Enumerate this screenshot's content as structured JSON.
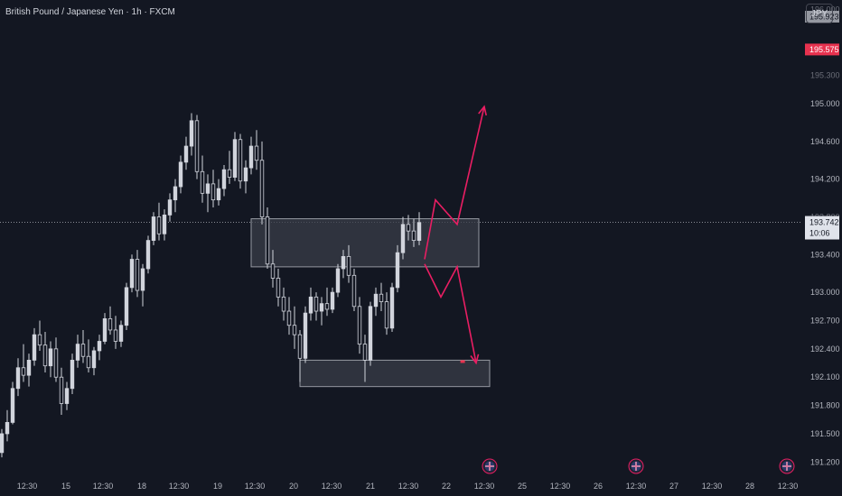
{
  "header": {
    "title": "British Pound / Japanese Yen · 1h · FXCM",
    "currency": "JPY"
  },
  "colors": {
    "background": "#131722",
    "candle": "#d1d4dc",
    "zone_fill": "#3a3d48",
    "zone_border": "#9598a1",
    "projection": "#e91e63",
    "last_price_bg": "#e0e3eb",
    "red_marker_bg": "#e8324f",
    "grey_marker_bg": "#9598a1"
  },
  "y_axis": {
    "ticks": [
      "195.000",
      "194.600",
      "194.200",
      "193.400",
      "193.000",
      "192.700",
      "192.400",
      "192.100",
      "191.800",
      "191.500",
      "191.200"
    ],
    "partial_ticks": [
      "196.000",
      "195.300",
      "193.800"
    ]
  },
  "price_labels": {
    "grey_marker": "195.923",
    "red_marker": "195.575",
    "last_price": "193.742",
    "countdown": "10:06"
  },
  "x_axis": {
    "labels": [
      "12:30",
      "15",
      "12:30",
      "18",
      "12:30",
      "19",
      "12:30",
      "20",
      "12:30",
      "21",
      "12:30",
      "22",
      "12:30",
      "25",
      "12:30",
      "26",
      "12:30",
      "27",
      "12:30",
      "28",
      "12:30"
    ]
  },
  "event_icons": [
    "uk-flag-icon",
    "uk-flag-icon",
    "uk-flag-icon"
  ],
  "chart_data": {
    "type": "candlestick",
    "title": "British Pound / Japanese Yen · 1h · FXCM",
    "symbol": "GBPJPY",
    "interval": "1h",
    "ylim": [
      191.05,
      196.1
    ],
    "grid": false,
    "last_price": 193.742,
    "ohlc": [
      [
        191.3,
        191.55,
        191.25,
        191.5
      ],
      [
        191.5,
        191.75,
        191.42,
        191.62
      ],
      [
        191.62,
        192.05,
        191.6,
        191.98
      ],
      [
        191.98,
        192.3,
        191.9,
        192.2
      ],
      [
        192.2,
        192.45,
        192.05,
        192.12
      ],
      [
        192.12,
        192.35,
        192.0,
        192.28
      ],
      [
        192.28,
        192.62,
        192.22,
        192.55
      ],
      [
        192.55,
        192.7,
        192.38,
        192.44
      ],
      [
        192.44,
        192.58,
        192.15,
        192.22
      ],
      [
        192.22,
        192.48,
        192.1,
        192.4
      ],
      [
        192.4,
        192.52,
        192.05,
        192.1
      ],
      [
        192.1,
        192.2,
        191.7,
        191.82
      ],
      [
        191.82,
        192.05,
        191.75,
        191.98
      ],
      [
        191.98,
        192.35,
        191.92,
        192.28
      ],
      [
        192.28,
        192.55,
        192.2,
        192.45
      ],
      [
        192.45,
        192.6,
        192.25,
        192.32
      ],
      [
        192.32,
        192.5,
        192.15,
        192.2
      ],
      [
        192.2,
        192.42,
        192.12,
        192.38
      ],
      [
        192.38,
        192.55,
        192.28,
        192.48
      ],
      [
        192.48,
        192.78,
        192.45,
        192.72
      ],
      [
        192.72,
        192.85,
        192.55,
        192.6
      ],
      [
        192.6,
        192.75,
        192.4,
        192.48
      ],
      [
        192.48,
        192.7,
        192.42,
        192.65
      ],
      [
        192.65,
        193.1,
        192.6,
        193.05
      ],
      [
        193.05,
        193.4,
        193.0,
        193.35
      ],
      [
        193.35,
        193.45,
        192.95,
        193.02
      ],
      [
        193.02,
        193.3,
        192.85,
        193.25
      ],
      [
        193.25,
        193.6,
        193.2,
        193.55
      ],
      [
        193.55,
        193.85,
        193.5,
        193.8
      ],
      [
        193.8,
        193.95,
        193.55,
        193.62
      ],
      [
        193.62,
        193.88,
        193.55,
        193.82
      ],
      [
        193.82,
        194.05,
        193.75,
        193.98
      ],
      [
        193.98,
        194.2,
        193.85,
        194.12
      ],
      [
        194.12,
        194.45,
        194.05,
        194.38
      ],
      [
        194.38,
        194.65,
        194.3,
        194.55
      ],
      [
        194.55,
        194.9,
        194.45,
        194.82
      ],
      [
        194.82,
        194.88,
        194.2,
        194.28
      ],
      [
        194.28,
        194.45,
        193.95,
        194.05
      ],
      [
        194.05,
        194.25,
        193.85,
        194.15
      ],
      [
        194.15,
        194.3,
        193.9,
        193.98
      ],
      [
        193.98,
        194.2,
        193.92,
        194.1
      ],
      [
        194.1,
        194.35,
        194.02,
        194.3
      ],
      [
        194.3,
        194.5,
        194.15,
        194.22
      ],
      [
        194.22,
        194.7,
        194.18,
        194.62
      ],
      [
        194.62,
        194.68,
        194.1,
        194.18
      ],
      [
        194.18,
        194.4,
        194.05,
        194.32
      ],
      [
        194.32,
        194.65,
        194.25,
        194.55
      ],
      [
        194.55,
        194.72,
        194.3,
        194.4
      ],
      [
        194.4,
        194.6,
        193.72,
        193.8
      ],
      [
        193.8,
        193.9,
        193.25,
        193.3
      ],
      [
        193.3,
        193.45,
        193.05,
        193.15
      ],
      [
        193.15,
        193.25,
        192.85,
        192.95
      ],
      [
        192.95,
        193.05,
        192.7,
        192.8
      ],
      [
        192.8,
        192.95,
        192.55,
        192.65
      ],
      [
        192.65,
        192.85,
        192.4,
        192.55
      ],
      [
        192.55,
        192.6,
        192.05,
        192.3
      ],
      [
        192.3,
        192.85,
        192.25,
        192.78
      ],
      [
        192.78,
        193.05,
        192.7,
        192.95
      ],
      [
        192.95,
        193.0,
        192.7,
        192.8
      ],
      [
        192.8,
        192.95,
        192.65,
        192.88
      ],
      [
        192.88,
        193.05,
        192.75,
        192.82
      ],
      [
        192.82,
        193.05,
        192.78,
        193.0
      ],
      [
        193.0,
        193.3,
        192.95,
        193.25
      ],
      [
        193.25,
        193.45,
        193.15,
        193.38
      ],
      [
        193.38,
        193.5,
        193.1,
        193.18
      ],
      [
        193.18,
        193.25,
        192.8,
        192.85
      ],
      [
        192.85,
        192.95,
        192.35,
        192.45
      ],
      [
        192.45,
        192.55,
        192.05,
        192.28
      ],
      [
        192.28,
        192.9,
        192.22,
        192.85
      ],
      [
        192.85,
        193.05,
        192.75,
        192.98
      ],
      [
        192.98,
        193.1,
        192.8,
        192.9
      ],
      [
        192.9,
        193.0,
        192.55,
        192.62
      ],
      [
        192.62,
        193.1,
        192.58,
        193.05
      ],
      [
        193.05,
        193.5,
        193.0,
        193.42
      ],
      [
        193.42,
        193.8,
        193.35,
        193.72
      ],
      [
        193.72,
        193.82,
        193.55,
        193.65
      ],
      [
        193.65,
        193.78,
        193.48,
        193.55
      ],
      [
        193.55,
        193.85,
        193.5,
        193.74
      ]
    ],
    "zones": [
      {
        "name": "resistance-zone",
        "from_candle": 46,
        "to_candle": 88,
        "top": 193.78,
        "bottom": 193.27
      },
      {
        "name": "support-zone",
        "from_candle": 55,
        "to_candle": 90,
        "top": 192.28,
        "bottom": 192.0
      }
    ],
    "projections": [
      {
        "name": "bullish-projection",
        "points": [
          [
            78.0,
            193.35
          ],
          [
            80.0,
            193.98
          ],
          [
            84.0,
            193.72
          ],
          [
            89.0,
            194.97
          ]
        ]
      },
      {
        "name": "bearish-projection",
        "points": [
          [
            78.0,
            193.3
          ],
          [
            81.0,
            192.95
          ],
          [
            84.0,
            193.27
          ],
          [
            87.5,
            192.25
          ]
        ]
      }
    ]
  }
}
